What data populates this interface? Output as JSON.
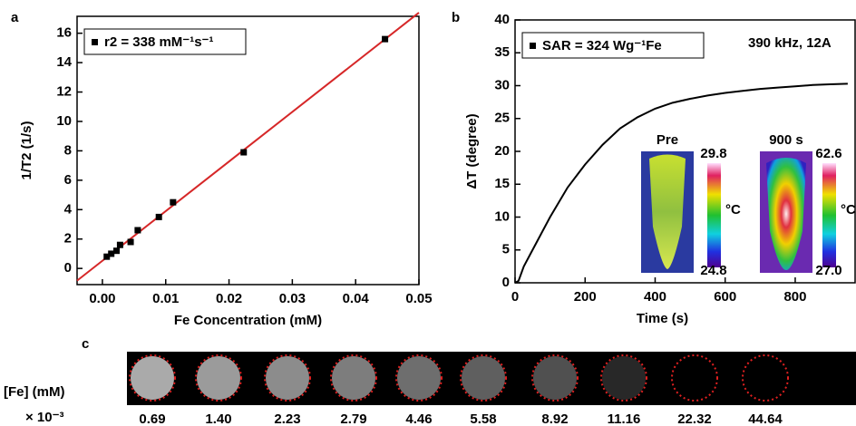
{
  "chart_data": [
    {
      "type": "scatter",
      "panel_label": "a",
      "x_label": "Fe Concentration (mM)",
      "y_label": "1/T2 (1/s)",
      "xlim": [
        -0.004,
        0.05
      ],
      "ylim": [
        -1.1,
        17.15
      ],
      "xticks": [
        {
          "value": 0,
          "label": "0.00"
        },
        0.01,
        0.02,
        0.03,
        0.04,
        0.05
      ],
      "yticks": [
        0,
        2,
        4,
        6,
        8,
        10,
        12,
        14,
        16
      ],
      "series": [
        {
          "name": "r2 = 338 mM⁻¹s⁻¹",
          "color": "#000000",
          "x": [
            0.00069,
            0.0014,
            0.00223,
            0.00279,
            0.00446,
            0.00558,
            0.00892,
            0.01116,
            0.02232,
            0.04464
          ],
          "values": [
            0.8,
            1.0,
            1.2,
            1.6,
            1.8,
            2.6,
            3.5,
            4.5,
            7.9,
            15.6
          ]
        }
      ],
      "fit_line": {
        "color": "#d62728",
        "x": [
          -0.004,
          0.05
        ],
        "values": [
          -0.83,
          17.4
        ]
      }
    },
    {
      "type": "line",
      "panel_label": "b",
      "x_label": "Time (s)",
      "y_label": "ΔT (degree)",
      "annotation": "390 kHz, 12A",
      "xlim": [
        0,
        971
      ],
      "ylim": [
        0,
        40
      ],
      "xticks": [
        0,
        200,
        400,
        600,
        800
      ],
      "yticks": [
        0,
        5,
        10,
        15,
        20,
        25,
        30,
        35,
        40
      ],
      "x": [
        0,
        10,
        25,
        50,
        75,
        100,
        150,
        200,
        250,
        300,
        350,
        400,
        450,
        500,
        550,
        600,
        650,
        700,
        750,
        800,
        850,
        900,
        950
      ],
      "series": [
        {
          "name": "SAR = 324 Wg⁻¹Fe",
          "color": "#000000",
          "values": [
            0,
            0.3,
            2.5,
            5,
            7.5,
            10,
            14.5,
            18,
            21,
            23.5,
            25.2,
            26.5,
            27.4,
            28,
            28.5,
            28.9,
            29.2,
            29.5,
            29.7,
            29.9,
            30.1,
            30.2,
            30.3
          ]
        }
      ],
      "insets": [
        {
          "title": "Pre",
          "max": "29.8",
          "min": "24.8",
          "unit": "°C"
        },
        {
          "title": "900 s",
          "max": "62.6",
          "min": "27.0",
          "unit": "°C"
        }
      ]
    }
  ],
  "panel_c": {
    "label": "c",
    "row_label": "[Fe] (mM)",
    "scale_label": "× 10⁻³",
    "concentrations": [
      "0.69",
      "1.40",
      "2.23",
      "2.79",
      "4.46",
      "5.58",
      "8.92",
      "11.16",
      "22.32",
      "44.64"
    ]
  }
}
